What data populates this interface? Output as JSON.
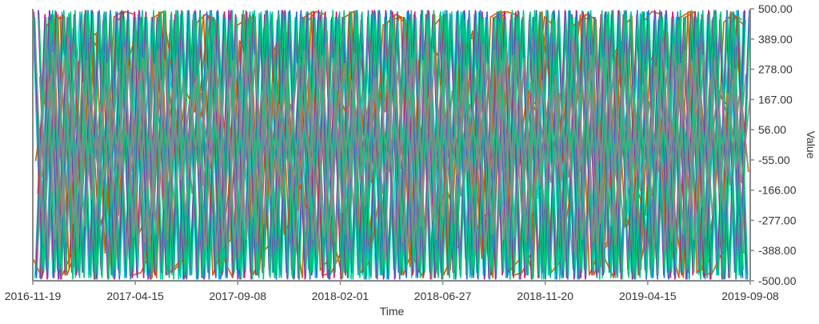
{
  "chart_data": {
    "type": "line",
    "title": "",
    "xlabel": "Time",
    "ylabel": "Value",
    "x_range": [
      "2016-11-19",
      "2019-09-08"
    ],
    "ylim": [
      -500,
      500
    ],
    "x_ticks": [
      "2016-11-19",
      "2017-04-15",
      "2017-09-08",
      "2018-02-01",
      "2018-06-27",
      "2018-11-20",
      "2019-04-15",
      "2019-09-08"
    ],
    "y_ticks": [
      "500.00",
      "389.00",
      "278.00",
      "167.00",
      "56.00",
      "-55.00",
      "-166.00",
      "-277.00",
      "-388.00",
      "-500.00"
    ],
    "grid": false,
    "legend": "none",
    "colors": [
      "#00d2d2",
      "#d55e00",
      "#e6007a",
      "#1f6fe5",
      "#00c878",
      "#8a8a8a"
    ],
    "series": [
      {
        "values": [
          480,
          -470,
          300,
          -490,
          460,
          -200,
          490,
          -480,
          120,
          -460,
          470,
          -350,
          495,
          -490,
          250,
          -480,
          460,
          -120,
          480,
          -495,
          380,
          -470,
          490,
          -300,
          470,
          -480,
          60,
          -490,
          485,
          -420,
          470,
          -495,
          330,
          -460,
          490,
          -250,
          480,
          -470,
          410,
          -490,
          495,
          -150,
          460,
          -480,
          280,
          -495,
          470,
          -380,
          490,
          -470,
          180,
          -480,
          495,
          -460,
          430,
          -490,
          470,
          -90,
          480,
          -495,
          350,
          -470,
          490,
          -330,
          460,
          -480,
          220,
          -490,
          495,
          -410,
          470,
          -495,
          300,
          -460,
          480,
          -260,
          490,
          -480,
          140,
          -470
        ]
      },
      {
        "values": [
          -300,
          450,
          -480,
          200,
          470,
          -420,
          380,
          -150,
          490,
          -470,
          100,
          440,
          -490,
          320,
          -260,
          480,
          -400,
          470,
          -60,
          430,
          -480,
          290,
          -350,
          490,
          -450,
          160,
          470,
          -300,
          420,
          -490,
          250,
          -180,
          480,
          -460,
          360,
          -420,
          490,
          -100,
          440,
          -480,
          300,
          -330,
          470,
          -470,
          200,
          460,
          -400,
          380,
          -250,
          490,
          -430,
          120,
          470,
          -360,
          410,
          -490,
          270,
          -210,
          480,
          -450,
          340,
          -400,
          490,
          -140,
          450,
          -480,
          310,
          -300,
          470,
          -460,
          190,
          480,
          -390,
          360,
          -240,
          490,
          -420,
          150,
          460,
          -350
        ]
      },
      {
        "values": [
          490,
          -495,
          470,
          -480,
          495,
          -460,
          480,
          -490,
          460,
          -470,
          490,
          -495,
          480,
          -460,
          470,
          -490,
          495,
          -480,
          460,
          -470,
          490,
          -495,
          470,
          -480,
          480,
          -460,
          495,
          -490,
          460,
          -470,
          480,
          -495,
          490,
          -480,
          470,
          -460,
          495,
          -490,
          460,
          -480,
          490,
          -470,
          470,
          -495,
          480,
          -460,
          495,
          -480,
          460,
          -490,
          490,
          -470,
          470,
          -495,
          480,
          -460,
          495,
          -480,
          460,
          -490,
          470,
          -470,
          490,
          -495,
          480,
          -460,
          460,
          -480,
          495,
          -490,
          470,
          -470,
          490,
          -495,
          480,
          -460,
          460,
          -480,
          495,
          -490
        ]
      },
      {
        "values": [
          -480,
          490,
          -460,
          480,
          -495,
          470,
          -470,
          495,
          -490,
          460,
          -480,
          490,
          -460,
          480,
          -495,
          470,
          -470,
          495,
          -490,
          460,
          -480,
          490,
          -460,
          480,
          -495,
          470,
          -470,
          495,
          -490,
          460,
          -480,
          490,
          -460,
          480,
          -495,
          470,
          -470,
          495,
          -490,
          460,
          -480,
          490,
          -460,
          480,
          -495,
          470,
          -470,
          495,
          -490,
          460,
          -480,
          490,
          -460,
          480,
          -495,
          470,
          -470,
          495,
          -490,
          460,
          -480,
          490,
          -460,
          480,
          -495,
          470,
          -470,
          495,
          -490,
          460,
          -480,
          490,
          -460,
          480,
          -495,
          470,
          -470,
          495,
          -490,
          460
        ]
      },
      {
        "values": [
          470,
          -490,
          480,
          -460,
          495,
          -480,
          460,
          -470,
          490,
          -495,
          470,
          -480,
          480,
          -460,
          495,
          -490,
          460,
          -470,
          490,
          -480,
          470,
          -495,
          480,
          -460,
          495,
          -490,
          460,
          -470,
          490,
          -480,
          470,
          -495,
          480,
          -460,
          495,
          -490,
          460,
          -470,
          490,
          -480,
          470,
          -495,
          480,
          -460,
          495,
          -490,
          460,
          -470,
          490,
          -480,
          470,
          -495,
          480,
          -460,
          495,
          -490,
          460,
          -470,
          490,
          -480,
          470,
          -495,
          480,
          -460,
          495,
          -490,
          460,
          -470,
          490,
          -480,
          470,
          -495,
          480,
          -460,
          495,
          -490,
          460,
          -470,
          490,
          -480
        ]
      },
      {
        "values": [
          -200,
          300,
          -350,
          250,
          -100,
          400,
          -300,
          150,
          -420,
          330,
          -180,
          280,
          -380,
          210,
          -120,
          360,
          -260,
          190,
          -400,
          310,
          -160,
          270,
          -340,
          230,
          -90,
          390,
          -280,
          170,
          -410,
          320,
          -150,
          260,
          -370,
          220,
          -110,
          380,
          -250,
          180,
          -430,
          340,
          -170,
          290,
          -360,
          240,
          -80,
          410,
          -270,
          160,
          -390,
          300,
          -140,
          250,
          -350,
          200,
          -100,
          370,
          -240,
          190,
          -420,
          330,
          -190,
          280,
          -330,
          210,
          -120,
          400,
          -290,
          150,
          -380,
          310,
          -130,
          260,
          -360,
          230,
          -90,
          350,
          -230,
          170,
          -400,
          320
        ]
      }
    ]
  }
}
